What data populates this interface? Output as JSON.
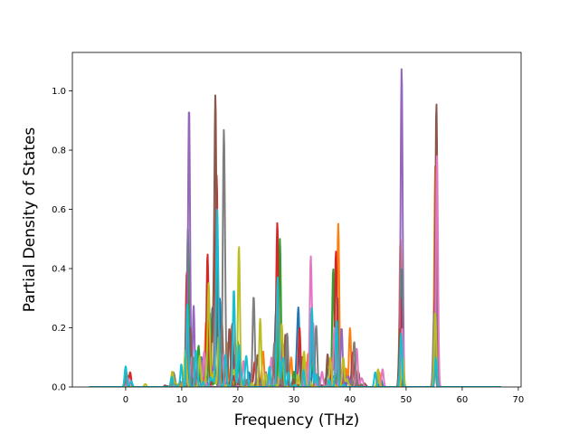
{
  "chart_data": {
    "type": "line",
    "title": "",
    "xlabel": "Frequency (THz)",
    "ylabel": "Partial Density of States",
    "xlim": [
      -9.5,
      70.5
    ],
    "ylim": [
      0,
      1.13
    ],
    "xticks": [
      0,
      10,
      20,
      30,
      40,
      50,
      60,
      70
    ],
    "yticks": [
      0.0,
      0.2,
      0.4,
      0.6,
      0.8,
      1.0
    ],
    "grid": false,
    "legend": "none",
    "x_range_plotted": [
      -6.5,
      67
    ],
    "note_series": "many overlapping series (tab10 color cycle); values estimated from visible peaks",
    "colors": [
      "#1f77b4",
      "#ff7f0e",
      "#2ca02c",
      "#d62728",
      "#9467bd",
      "#8c564b",
      "#e377c2",
      "#7f7f7f",
      "#bcbd22",
      "#17becf"
    ],
    "series": [
      {
        "color": "#1f77b4",
        "peaks": [
          [
            0.0,
            0.05
          ],
          [
            11.0,
            0.2
          ],
          [
            13.5,
            0.1
          ],
          [
            15.5,
            0.2
          ],
          [
            16.8,
            0.3
          ],
          [
            19.5,
            0.1
          ],
          [
            22.0,
            0.05
          ],
          [
            26.8,
            0.25
          ],
          [
            30.8,
            0.26
          ],
          [
            33.5,
            0.15
          ],
          [
            36.0,
            0.05
          ],
          [
            37.8,
            0.3
          ],
          [
            39.5,
            0.05
          ],
          [
            45.5,
            0.03
          ],
          [
            49.1,
            0.3
          ],
          [
            55.3,
            0.2
          ]
        ]
      },
      {
        "color": "#ff7f0e",
        "peaks": [
          [
            0.3,
            0.04
          ],
          [
            11.2,
            0.15
          ],
          [
            14.3,
            0.2
          ],
          [
            16.0,
            0.45
          ],
          [
            18.0,
            0.15
          ],
          [
            24.5,
            0.12
          ],
          [
            27.2,
            0.3
          ],
          [
            29.5,
            0.1
          ],
          [
            32.5,
            0.1
          ],
          [
            37.9,
            0.55
          ],
          [
            40.0,
            0.2
          ],
          [
            45.2,
            0.05
          ],
          [
            49.0,
            0.5
          ],
          [
            55.2,
            0.75
          ]
        ]
      },
      {
        "color": "#2ca02c",
        "peaks": [
          [
            0.1,
            0.05
          ],
          [
            11.1,
            0.45
          ],
          [
            13.0,
            0.14
          ],
          [
            15.0,
            0.25
          ],
          [
            17.0,
            0.1
          ],
          [
            20.0,
            0.15
          ],
          [
            27.5,
            0.5
          ],
          [
            30.0,
            0.05
          ],
          [
            33.0,
            0.2
          ],
          [
            37.0,
            0.4
          ],
          [
            41.0,
            0.05
          ],
          [
            49.2,
            0.4
          ],
          [
            55.3,
            0.5
          ]
        ]
      },
      {
        "color": "#d62728",
        "peaks": [
          [
            0.8,
            0.05
          ],
          [
            10.9,
            0.37
          ],
          [
            14.6,
            0.45
          ],
          [
            16.2,
            0.6
          ],
          [
            19.0,
            0.2
          ],
          [
            23.0,
            0.08
          ],
          [
            27.0,
            0.45
          ],
          [
            31.0,
            0.2
          ],
          [
            37.5,
            0.44
          ],
          [
            40.5,
            0.1
          ],
          [
            49.0,
            0.3
          ],
          [
            55.1,
            0.3
          ]
        ]
      },
      {
        "color": "#9467bd",
        "peaks": [
          [
            0.0,
            0.03
          ],
          [
            11.3,
            0.95
          ],
          [
            13.8,
            0.08
          ],
          [
            16.1,
            0.3
          ],
          [
            20.5,
            0.05
          ],
          [
            25.0,
            0.05
          ],
          [
            28.0,
            0.15
          ],
          [
            33.0,
            0.25
          ],
          [
            38.5,
            0.2
          ],
          [
            49.2,
            1.08
          ],
          [
            55.3,
            0.6
          ]
        ]
      },
      {
        "color": "#8c564b",
        "peaks": [
          [
            0.2,
            0.04
          ],
          [
            8.5,
            0.05
          ],
          [
            11.5,
            0.2
          ],
          [
            16.0,
            0.98
          ],
          [
            18.5,
            0.2
          ],
          [
            23.5,
            0.1
          ],
          [
            28.5,
            0.18
          ],
          [
            31.5,
            0.1
          ],
          [
            36.0,
            0.1
          ],
          [
            41.5,
            0.05
          ],
          [
            48.9,
            0.2
          ],
          [
            55.4,
            0.96
          ]
        ]
      },
      {
        "color": "#e377c2",
        "peaks": [
          [
            0.4,
            0.03
          ],
          [
            11.8,
            0.1
          ],
          [
            14.0,
            0.12
          ],
          [
            17.2,
            0.1
          ],
          [
            21.0,
            0.08
          ],
          [
            26.0,
            0.1
          ],
          [
            33.0,
            0.44
          ],
          [
            35.0,
            0.05
          ],
          [
            37.2,
            0.2
          ],
          [
            41.2,
            0.13
          ],
          [
            45.8,
            0.06
          ],
          [
            49.3,
            0.2
          ],
          [
            55.5,
            0.78
          ]
        ]
      },
      {
        "color": "#7f7f7f",
        "peaks": [
          [
            0.0,
            0.03
          ],
          [
            8.6,
            0.04
          ],
          [
            12.0,
            0.1
          ],
          [
            17.5,
            0.82
          ],
          [
            22.8,
            0.29
          ],
          [
            26.5,
            0.15
          ],
          [
            28.8,
            0.18
          ],
          [
            34.0,
            0.18
          ],
          [
            38.0,
            0.1
          ],
          [
            40.8,
            0.12
          ],
          [
            48.8,
            0.04
          ],
          [
            55.0,
            0.25
          ]
        ]
      },
      {
        "color": "#bcbd22",
        "peaks": [
          [
            3.5,
            0.01
          ],
          [
            8.3,
            0.05
          ],
          [
            10.7,
            0.12
          ],
          [
            13.2,
            0.1
          ],
          [
            14.8,
            0.35
          ],
          [
            16.6,
            0.15
          ],
          [
            20.2,
            0.42
          ],
          [
            24.0,
            0.2
          ],
          [
            27.8,
            0.2
          ],
          [
            31.8,
            0.12
          ],
          [
            36.5,
            0.1
          ],
          [
            38.8,
            0.1
          ],
          [
            45.0,
            0.06
          ],
          [
            49.4,
            0.1
          ],
          [
            55.2,
            0.25
          ]
        ]
      },
      {
        "color": "#17becf",
        "peaks": [
          [
            0.0,
            0.07
          ],
          [
            1.0,
            0.02
          ],
          [
            8.2,
            0.03
          ],
          [
            11.0,
            0.28
          ],
          [
            12.5,
            0.12
          ],
          [
            16.3,
            0.58
          ],
          [
            17.8,
            0.1
          ],
          [
            19.3,
            0.33
          ],
          [
            21.5,
            0.1
          ],
          [
            27.1,
            0.37
          ],
          [
            29.0,
            0.05
          ],
          [
            33.2,
            0.24
          ],
          [
            37.6,
            0.22
          ],
          [
            44.5,
            0.05
          ],
          [
            49.1,
            0.18
          ],
          [
            55.3,
            0.1
          ]
        ]
      }
    ]
  }
}
